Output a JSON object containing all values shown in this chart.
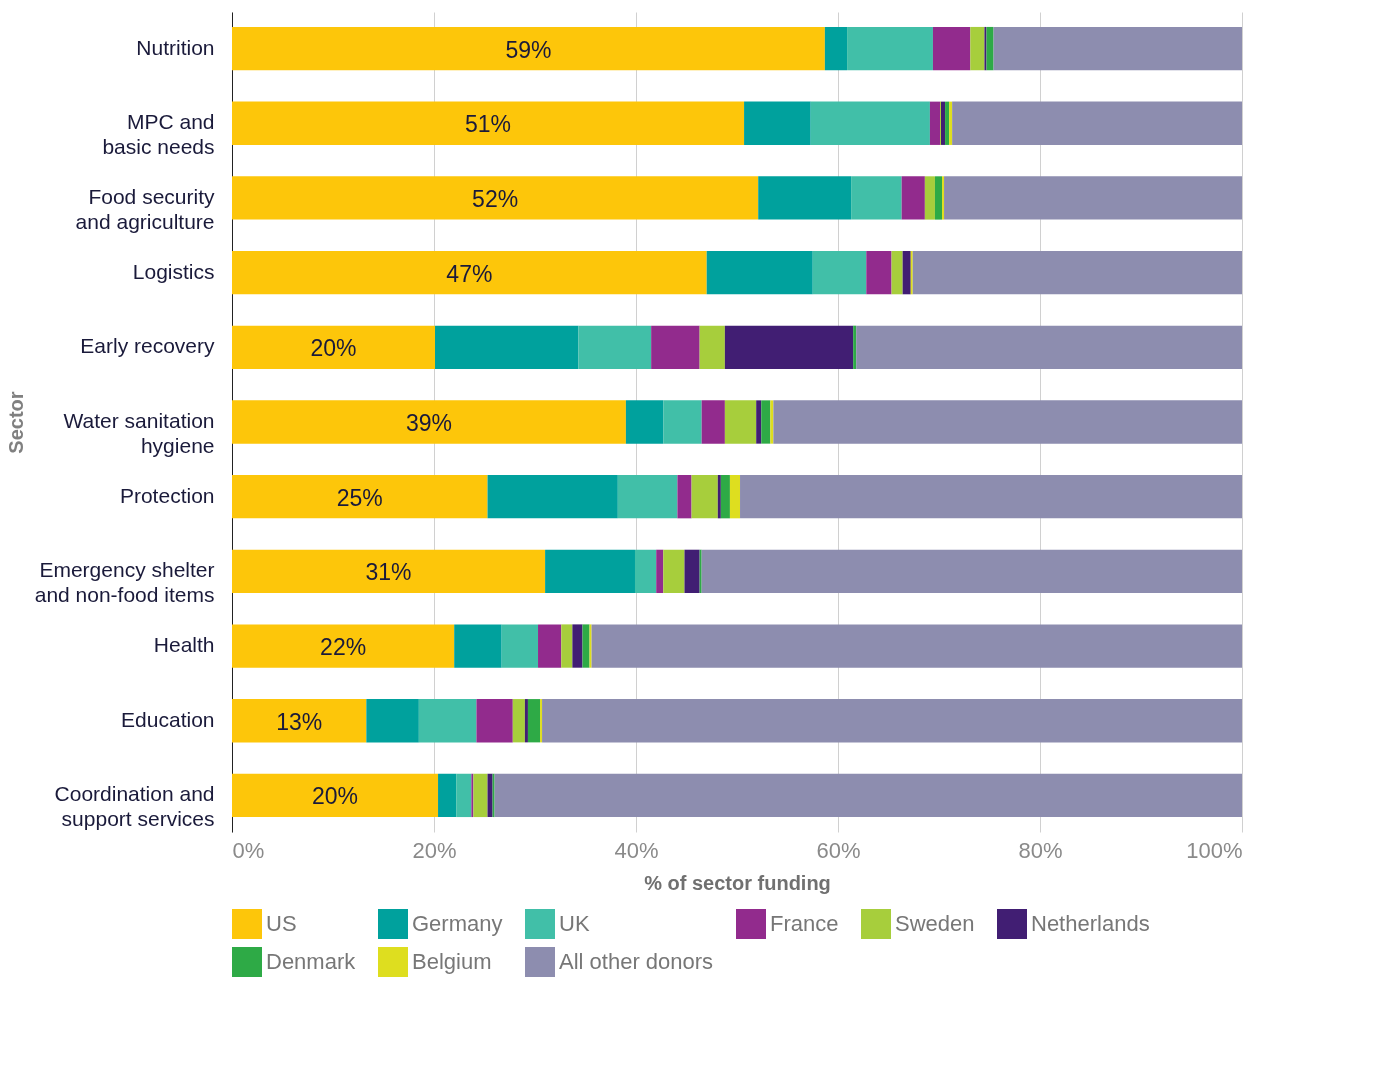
{
  "chart_data": {
    "type": "bar",
    "orientation": "horizontal",
    "stacked": true,
    "xlabel": "% of sector funding",
    "ylabel": "Sector",
    "categories": [
      "Nutrition",
      "MPC and\nbasic needs",
      "Food security\nand agriculture",
      "Logistics",
      "Early recovery",
      "Water sanitation\nhygiene",
      "Protection",
      "Emergency shelter\nand non-food items",
      "Health",
      "Education",
      "Coordination and\nsupport services"
    ],
    "series": [
      {
        "name": "US",
        "color": "#fdc60a",
        "values": [
          58.7,
          50.7,
          52.1,
          47.0,
          20.1,
          39.0,
          25.3,
          31.0,
          22.0,
          13.3,
          20.4
        ],
        "value_labels": [
          "59%",
          "51%",
          "52%",
          "47%",
          "20%",
          "39%",
          "25%",
          "31%",
          "22%",
          "13%",
          "20%"
        ]
      },
      {
        "name": "Germany",
        "color": "#00a19d",
        "values": [
          2.2,
          6.6,
          9.2,
          10.5,
          14.2,
          3.7,
          12.9,
          8.9,
          4.7,
          5.2,
          1.8
        ]
      },
      {
        "name": "UK",
        "color": "#41bfa8",
        "values": [
          8.5,
          11.8,
          5.0,
          5.3,
          7.2,
          3.8,
          5.9,
          2.1,
          3.6,
          5.7,
          1.5
        ]
      },
      {
        "name": "France",
        "color": "#922b8d",
        "values": [
          3.7,
          1.0,
          2.3,
          2.5,
          4.8,
          2.3,
          1.4,
          0.7,
          2.3,
          3.6,
          0.2
        ]
      },
      {
        "name": "Sweden",
        "color": "#a7ce3c",
        "values": [
          1.4,
          0.1,
          1.0,
          1.1,
          2.5,
          3.1,
          2.6,
          2.1,
          1.1,
          1.2,
          1.4
        ]
      },
      {
        "name": "Netherlands",
        "color": "#411e73",
        "values": [
          0.2,
          0.4,
          0,
          0.8,
          12.7,
          0.5,
          0.3,
          1.5,
          1.0,
          0.3,
          0.5
        ]
      },
      {
        "name": "Denmark",
        "color": "#2eaa46",
        "values": [
          0.7,
          0.4,
          0.7,
          0,
          0.3,
          0.9,
          0.9,
          0.2,
          0.7,
          1.2,
          0.2
        ]
      },
      {
        "name": "Belgium",
        "color": "#dede1f",
        "values": [
          0,
          0.3,
          0.2,
          0.2,
          0,
          0.3,
          1.0,
          0,
          0.2,
          0.2,
          0
        ]
      },
      {
        "name": "All other donors",
        "color": "#8d8daf",
        "values": [
          24.6,
          28.7,
          29.5,
          32.6,
          38.2,
          46.4,
          49.7,
          53.5,
          64.4,
          69.3,
          74.0
        ]
      }
    ],
    "xlim": [
      0,
      100
    ],
    "xticks": [
      {
        "value": 0,
        "label": "0%"
      },
      {
        "value": 20,
        "label": "20%"
      },
      {
        "value": 40,
        "label": "40%"
      },
      {
        "value": 60,
        "label": "60%"
      },
      {
        "value": 80,
        "label": "80%"
      },
      {
        "value": 100,
        "label": "100%"
      }
    ],
    "grid": "x",
    "legend": "bottom"
  }
}
